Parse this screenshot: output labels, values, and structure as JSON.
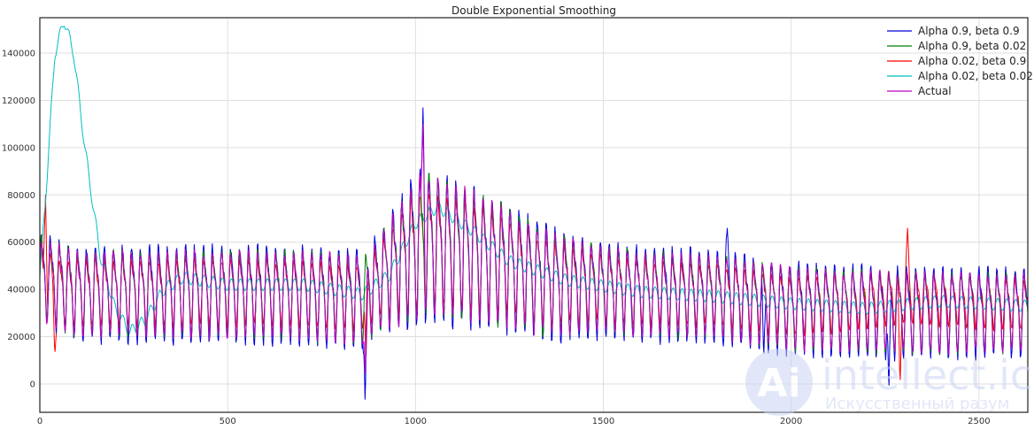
{
  "chart_data": {
    "type": "line",
    "title": "Double Exponential Smoothing",
    "xlabel": "",
    "ylabel": "",
    "xlim": [
      0,
      2630
    ],
    "ylim": [
      -12000,
      155000
    ],
    "x_ticks": [
      0,
      500,
      1000,
      1500,
      2000,
      2500
    ],
    "y_ticks": [
      0,
      20000,
      40000,
      60000,
      80000,
      100000,
      120000,
      140000
    ],
    "grid": true,
    "legend_position": "top-right",
    "series": [
      {
        "name": "Alpha 0.9, beta 0.9",
        "color": "#0000dd",
        "trend": [
          [
            0,
            47000
          ],
          [
            100,
            40000
          ],
          [
            300,
            40000
          ],
          [
            600,
            40000
          ],
          [
            860,
            38000
          ],
          [
            950,
            52000
          ],
          [
            1020,
            62000
          ],
          [
            1200,
            55000
          ],
          [
            1350,
            45000
          ],
          [
            1600,
            40000
          ],
          [
            1800,
            39000
          ],
          [
            2000,
            34000
          ],
          [
            2300,
            32000
          ],
          [
            2630,
            32000
          ]
        ],
        "amplitude": [
          [
            0,
            16000
          ],
          [
            100,
            17000
          ],
          [
            900,
            18000
          ],
          [
            1000,
            28000
          ],
          [
            1200,
            24000
          ],
          [
            1500,
            17000
          ],
          [
            2630,
            16000
          ]
        ],
        "spikes": [
          [
            866,
            -12000
          ],
          [
            1020,
            117000
          ],
          [
            1927,
            10000
          ],
          [
            2260,
            -5000
          ],
          [
            1830,
            66000
          ]
        ]
      },
      {
        "name": "Alpha 0.9, beta 0.02",
        "color": "#008000",
        "trend": [
          [
            0,
            47000
          ],
          [
            100,
            40000
          ],
          [
            300,
            40000
          ],
          [
            600,
            40000
          ],
          [
            860,
            38000
          ],
          [
            950,
            52000
          ],
          [
            1020,
            62000
          ],
          [
            1200,
            55000
          ],
          [
            1350,
            45000
          ],
          [
            1600,
            40000
          ],
          [
            1800,
            39000
          ],
          [
            2000,
            34000
          ],
          [
            2300,
            32000
          ],
          [
            2630,
            32000
          ]
        ],
        "amplitude": [
          [
            0,
            15000
          ],
          [
            900,
            16000
          ],
          [
            1000,
            26000
          ],
          [
            1200,
            22000
          ],
          [
            1500,
            15000
          ],
          [
            2630,
            14000
          ]
        ],
        "spikes": []
      },
      {
        "name": "Alpha 0.02, beta 0.9",
        "color": "#ff0000",
        "trend": [
          [
            0,
            45000
          ],
          [
            60,
            40000
          ],
          [
            300,
            40000
          ],
          [
            600,
            40000
          ],
          [
            860,
            38000
          ],
          [
            950,
            52000
          ],
          [
            1020,
            60000
          ],
          [
            1200,
            55000
          ],
          [
            1350,
            45000
          ],
          [
            1600,
            40000
          ],
          [
            1800,
            39000
          ],
          [
            2000,
            34000
          ],
          [
            2300,
            38000
          ],
          [
            2630,
            34000
          ]
        ],
        "amplitude": [
          [
            0,
            12000
          ],
          [
            900,
            12000
          ],
          [
            1000,
            22000
          ],
          [
            1200,
            18000
          ],
          [
            1500,
            12000
          ],
          [
            2630,
            9000
          ]
        ],
        "spikes": [
          [
            15,
            80000
          ],
          [
            40,
            12000
          ],
          [
            868,
            8000
          ],
          [
            2290,
            -2000
          ],
          [
            2310,
            66000
          ]
        ]
      },
      {
        "name": "Alpha 0.02, beta 0.02",
        "color": "#00bfbf",
        "smooth": [
          [
            0,
            45000
          ],
          [
            20,
            90000
          ],
          [
            40,
            140000
          ],
          [
            65,
            154000
          ],
          [
            90,
            140000
          ],
          [
            120,
            100000
          ],
          [
            160,
            55000
          ],
          [
            200,
            32000
          ],
          [
            240,
            22000
          ],
          [
            280,
            27000
          ],
          [
            330,
            40000
          ],
          [
            380,
            45000
          ],
          [
            500,
            42000
          ],
          [
            700,
            42000
          ],
          [
            860,
            38000
          ],
          [
            930,
            46000
          ],
          [
            1000,
            68000
          ],
          [
            1060,
            75000
          ],
          [
            1150,
            65000
          ],
          [
            1250,
            52000
          ],
          [
            1400,
            44000
          ],
          [
            1600,
            39000
          ],
          [
            1800,
            37000
          ],
          [
            2000,
            34000
          ],
          [
            2200,
            32000
          ],
          [
            2400,
            35000
          ],
          [
            2630,
            33000
          ]
        ],
        "ripple": 2500
      },
      {
        "name": "Actual",
        "color": "#bf00bf",
        "trend": [
          [
            0,
            46000
          ],
          [
            100,
            40000
          ],
          [
            300,
            40000
          ],
          [
            600,
            40000
          ],
          [
            860,
            38000
          ],
          [
            950,
            52000
          ],
          [
            1020,
            62000
          ],
          [
            1200,
            55000
          ],
          [
            1350,
            45000
          ],
          [
            1600,
            40000
          ],
          [
            1800,
            39000
          ],
          [
            2000,
            34000
          ],
          [
            2300,
            32000
          ],
          [
            2630,
            32000
          ]
        ],
        "amplitude": [
          [
            0,
            15000
          ],
          [
            900,
            16000
          ],
          [
            1000,
            26000
          ],
          [
            1200,
            22000
          ],
          [
            1500,
            15000
          ],
          [
            2630,
            14000
          ]
        ],
        "spikes": [
          [
            866,
            0
          ],
          [
            1020,
            110000
          ]
        ]
      }
    ]
  },
  "watermark": {
    "brand": "intellect.icu",
    "tagline": "Искусственный разум",
    "logo_letters": "Ai"
  }
}
